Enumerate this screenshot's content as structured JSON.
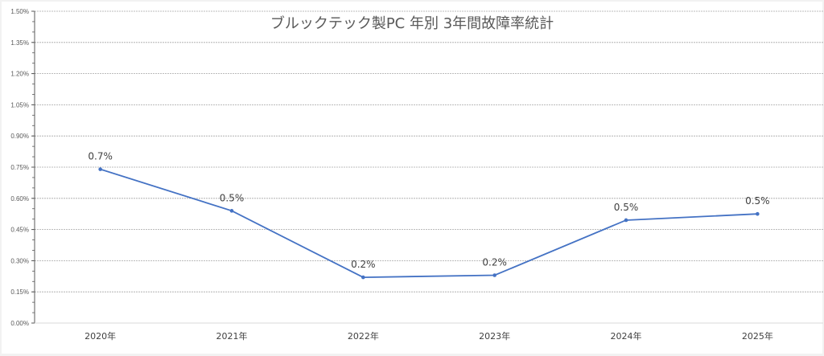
{
  "chart_data": {
    "type": "line",
    "title": "ブルックテック製PC 年別 3年間故障率統計",
    "xlabel": "",
    "ylabel": "",
    "categories": [
      "2020年",
      "2021年",
      "2022年",
      "2023年",
      "2024年",
      "2025年"
    ],
    "series": [
      {
        "name": "故障率",
        "values": [
          0.74,
          0.54,
          0.22,
          0.23,
          0.495,
          0.525
        ],
        "data_labels": [
          "0.7%",
          "0.5%",
          "0.2%",
          "0.2%",
          "0.5%",
          "0.5%"
        ],
        "color": "#4472c4"
      }
    ],
    "ylim": [
      0,
      1.5
    ],
    "yticks": [
      "0.00%",
      "0.15%",
      "0.30%",
      "0.45%",
      "0.60%",
      "0.75%",
      "0.90%",
      "1.05%",
      "1.20%",
      "1.35%",
      "1.50%"
    ],
    "y_minor_step": 0.05,
    "grid": true,
    "legend": "none"
  }
}
